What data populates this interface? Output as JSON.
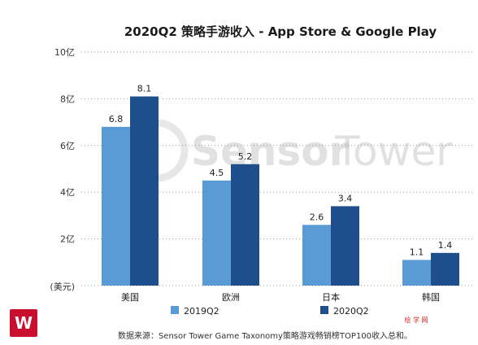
{
  "colors": {
    "series_2019": "#5b9bd5",
    "series_2020": "#1f4e8c",
    "grid": "#9a9a9a",
    "logo_red": "#c8102e",
    "watermark": "#c9c9c9"
  },
  "watermark": {
    "text_bold": "Sensor",
    "text_light": "Tower"
  },
  "logo": {
    "glyph": "W"
  },
  "corner_mark": "绘 学 网",
  "source_note": "数据来源：Sensor Tower Game Taxonomy策略游戏畅销榜TOP100收入总和。",
  "chart_data": {
    "type": "bar",
    "title": "2020Q2 策略手游收入 - App Store & Google Play",
    "xlabel": "",
    "ylabel": "(美元)",
    "ylim": [
      0,
      10
    ],
    "yticks": [
      {
        "value": 2,
        "label": "2亿"
      },
      {
        "value": 4,
        "label": "4亿"
      },
      {
        "value": 6,
        "label": "6亿"
      },
      {
        "value": 8,
        "label": "8亿"
      },
      {
        "value": 10,
        "label": "10亿"
      }
    ],
    "grid": true,
    "legend_position": "bottom",
    "categories": [
      "美国",
      "欧洲",
      "日本",
      "韩国"
    ],
    "series": [
      {
        "name": "2019Q2",
        "values": [
          6.8,
          4.5,
          2.6,
          1.1
        ],
        "labels": [
          "6.8",
          "4.5",
          "2.6",
          "1.1"
        ]
      },
      {
        "name": "2020Q2",
        "values": [
          8.1,
          5.2,
          3.4,
          1.4
        ],
        "labels": [
          "8.1",
          "5.2",
          "3.4",
          "1.4"
        ]
      }
    ]
  }
}
